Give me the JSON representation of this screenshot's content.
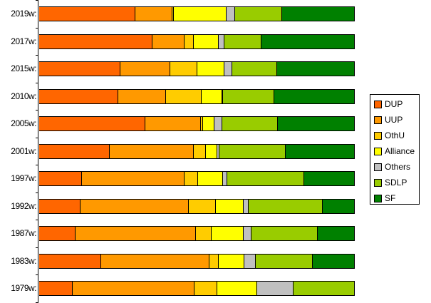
{
  "chart_data": {
    "type": "bar",
    "orientation": "horizontal",
    "stacked": true,
    "normalized_percent": true,
    "title": "",
    "xlabel": "",
    "ylabel": "",
    "xlim": [
      0,
      100
    ],
    "grid": false,
    "legend_position": "right",
    "categories": [
      "2019w:",
      "2017w:",
      "2015w:",
      "2010w:",
      "2005w:",
      "2001w:",
      "1997w:",
      "1992w:",
      "1987w:",
      "1983w:",
      "1979w:"
    ],
    "series": [
      {
        "name": "DUP",
        "color": "#ff6600",
        "values": [
          30.5,
          36.0,
          25.7,
          25.1,
          33.5,
          22.4,
          13.6,
          13.1,
          11.5,
          19.7,
          10.6
        ]
      },
      {
        "name": "UUP",
        "color": "#ff9900",
        "values": [
          11.8,
          10.2,
          15.9,
          15.2,
          17.6,
          26.7,
          32.6,
          34.4,
          38.2,
          34.4,
          38.7
        ]
      },
      {
        "name": "OthU",
        "color": "#ffcc00",
        "values": [
          0.5,
          2.9,
          8.6,
          11.3,
          0.7,
          3.8,
          4.3,
          8.6,
          5.0,
          2.9,
          7.2
        ]
      },
      {
        "name": "Alliance",
        "color": "#ffff00",
        "values": [
          16.7,
          7.9,
          8.6,
          6.6,
          3.8,
          3.6,
          7.9,
          8.8,
          10.0,
          8.1,
          12.7
        ]
      },
      {
        "name": "Others",
        "color": "#c0c0c0",
        "values": [
          2.7,
          1.8,
          2.5,
          0.2,
          2.3,
          0.7,
          1.4,
          1.6,
          2.7,
          3.6,
          11.5
        ]
      },
      {
        "name": "SDLP",
        "color": "#99cc00",
        "values": [
          14.9,
          11.8,
          14.3,
          16.5,
          17.6,
          21.0,
          24.4,
          23.5,
          21.0,
          18.1,
          19.2
        ]
      },
      {
        "name": "SF",
        "color": "#008000",
        "values": [
          22.9,
          29.4,
          24.4,
          25.3,
          24.2,
          21.7,
          15.8,
          10.0,
          11.4,
          13.1,
          0.0
        ]
      }
    ]
  },
  "legend": {
    "items": [
      {
        "label": "DUP",
        "color": "#ff6600"
      },
      {
        "label": "UUP",
        "color": "#ff9900"
      },
      {
        "label": "OthU",
        "color": "#ffcc00"
      },
      {
        "label": "Alliance",
        "color": "#ffff00"
      },
      {
        "label": "Others",
        "color": "#c0c0c0"
      },
      {
        "label": "SDLP",
        "color": "#99cc00"
      },
      {
        "label": "SF",
        "color": "#008000"
      }
    ]
  }
}
